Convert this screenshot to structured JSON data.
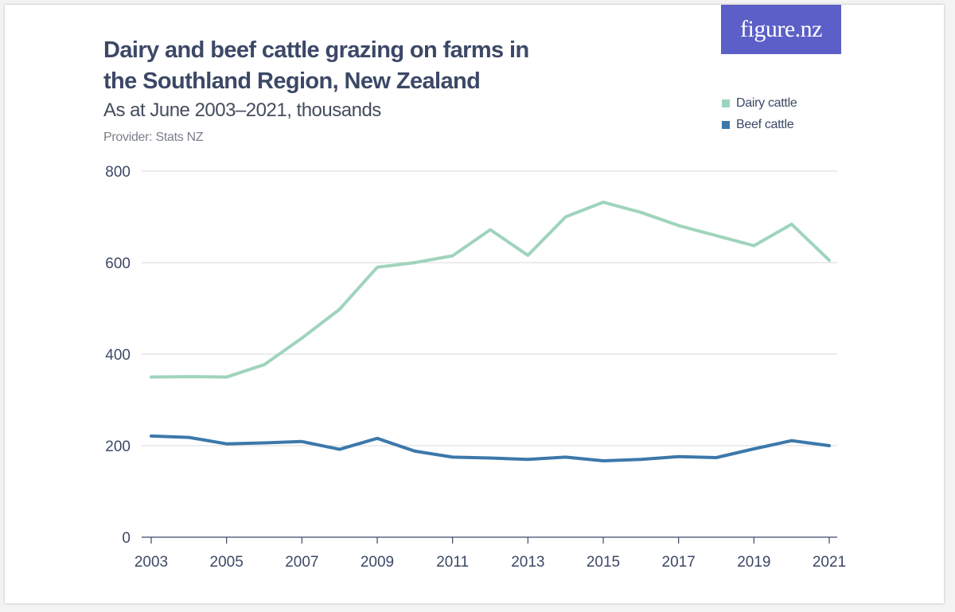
{
  "title": "Dairy and beef cattle grazing on farms in the Southland Region, New Zealand",
  "subtitle": "As at June 2003–2021, thousands",
  "provider": "Provider: Stats NZ",
  "logo_text": "figure.nz",
  "colors": {
    "logo_bg": "#5b5fc7",
    "dairy": "#9fd4bc",
    "beef": "#3c78aa",
    "grid": "#d9d9d9",
    "axis": "#3c4866"
  },
  "chart_data": {
    "type": "line",
    "title": "Dairy and beef cattle grazing on farms in the Southland Region, New Zealand",
    "subtitle": "As at June 2003–2021, thousands",
    "xlabel": "",
    "ylabel": "",
    "x": [
      2003,
      2004,
      2005,
      2006,
      2007,
      2008,
      2009,
      2010,
      2011,
      2012,
      2013,
      2014,
      2015,
      2016,
      2017,
      2018,
      2019,
      2020,
      2021
    ],
    "x_tick_labels": [
      "2003",
      "2005",
      "2007",
      "2009",
      "2011",
      "2013",
      "2015",
      "2017",
      "2019",
      "2021"
    ],
    "y_tick_labels": [
      "0",
      "200",
      "400",
      "600",
      "800"
    ],
    "ylim": [
      0,
      800
    ],
    "grid": true,
    "legend_position": "top-right",
    "series": [
      {
        "name": "Dairy cattle",
        "color": "#9fd4bc",
        "values": [
          350,
          351,
          350,
          377,
          435,
          498,
          590,
          600,
          615,
          672,
          616,
          700,
          732,
          710,
          681,
          659,
          637,
          684,
          605
        ]
      },
      {
        "name": "Beef cattle",
        "color": "#3c78aa",
        "values": [
          221,
          218,
          204,
          206,
          209,
          192,
          216,
          188,
          175,
          173,
          170,
          175,
          167,
          170,
          176,
          174,
          193,
          211,
          200
        ]
      }
    ]
  }
}
